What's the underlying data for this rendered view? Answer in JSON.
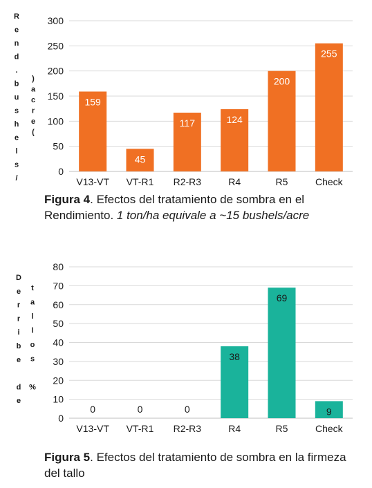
{
  "chart_data": [
    {
      "type": "bar",
      "categories": [
        "V13-VT",
        "VT-R1",
        "R2-R3",
        "R4",
        "R5",
        "Check"
      ],
      "values": [
        159,
        45,
        117,
        124,
        200,
        255
      ],
      "ylabel": "Rend. bushels/ acre )",
      "ylabel_col1": [
        "R",
        "e",
        "n",
        "d",
        ".",
        "b",
        "u",
        "s",
        "h",
        "e",
        "l",
        "s",
        "/"
      ],
      "ylabel_col2": [
        ")",
        "a",
        "c",
        "r",
        "e",
        "("
      ],
      "ylim": [
        0,
        300
      ],
      "yticks": [
        0,
        50,
        100,
        150,
        200,
        250,
        300
      ],
      "color": "#F07023",
      "label_color": "#ffffff",
      "grid": true
    },
    {
      "type": "bar",
      "categories": [
        "V13-VT",
        "VT-R1",
        "R2-R3",
        "R4",
        "R5",
        "Check"
      ],
      "values": [
        0,
        0,
        0,
        38,
        69,
        9
      ],
      "ylabel": "Derribe de tallos %",
      "ylabel_col1": [
        "D",
        "e",
        "r",
        "r",
        "i",
        "b",
        "e",
        "",
        "d",
        "e"
      ],
      "ylabel_col2": [
        "t",
        "a",
        "l",
        "l",
        "o",
        "s",
        "",
        "%"
      ],
      "ylim": [
        0,
        80
      ],
      "yticks": [
        0,
        10,
        20,
        30,
        40,
        50,
        60,
        70,
        80
      ],
      "color": "#1AB39B",
      "label_color": "#1a1a1a",
      "grid": true
    }
  ],
  "captions": {
    "fig4_label": "Figura 4",
    "fig4_text": ". Efectos del tratamiento de sombra en el Rendimiento. ",
    "fig4_italic": "1 ton/ha equivale a ~15 bushels/acre",
    "fig5_label": "Figura 5",
    "fig5_text": ". Efectos del tratamiento de sombra en la firmeza del tallo"
  }
}
